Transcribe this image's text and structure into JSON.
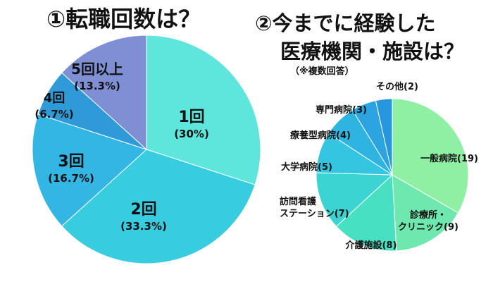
{
  "titles": {
    "chart1": "①転職回数は？",
    "chart2_line1": "②今までに経験した",
    "chart2_line2": "医療機関・施設は？",
    "chart2_note": "（※複数回答）"
  },
  "chart_data": [
    {
      "type": "pie",
      "title": "①転職回数は？",
      "categories": [
        "1回",
        "2回",
        "3回",
        "4回",
        "5回以上"
      ],
      "values": [
        30,
        33.3,
        16.7,
        6.7,
        13.3
      ],
      "value_labels": [
        "(30%)",
        "(33.3%)",
        "(16.7%)",
        "(6.7%)",
        "(13.3%)"
      ],
      "colors": [
        "#5ee6dc",
        "#38cce0",
        "#33b6e4",
        "#2e9ad8",
        "#7f8fd4"
      ],
      "start": "12 o'clock",
      "direction": "clockwise"
    },
    {
      "type": "pie",
      "title": "②今までに経験した医療機関・施設は？",
      "subtitle": "（※複数回答）",
      "categories": [
        "一般病院",
        "診療所・クリニック",
        "介護施設",
        "訪問看護ステーション",
        "大学病院",
        "療養型病院",
        "専門病院",
        "その他"
      ],
      "labels": [
        "一般病院(19)",
        "診療所・\nクリニック(9)",
        "介護施設(8)",
        "訪問看護\nステーション(7)",
        "大学病院(5)",
        "療養型病院(4)",
        "専門病院(3)",
        "その他(2)"
      ],
      "values": [
        19,
        9,
        8,
        7,
        5,
        4,
        3,
        2
      ],
      "colors": [
        "#8ff0a4",
        "#6ee8ae",
        "#48e0c2",
        "#3cd4d2",
        "#34c6e0",
        "#2fb4e2",
        "#2ca4e0",
        "#2896dc"
      ],
      "start": "12 o'clock",
      "direction": "clockwise"
    }
  ]
}
